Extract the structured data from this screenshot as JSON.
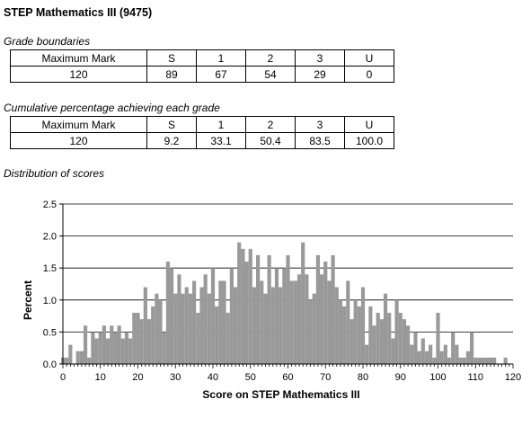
{
  "title": "STEP Mathematics III (9475)",
  "grade_boundaries": {
    "caption": "Grade boundaries",
    "headers": [
      "Maximum Mark",
      "S",
      "1",
      "2",
      "3",
      "U"
    ],
    "values": [
      "120",
      "89",
      "67",
      "54",
      "29",
      "0"
    ]
  },
  "cumulative": {
    "caption": "Cumulative percentage achieving each grade",
    "headers": [
      "Maximum Mark",
      "S",
      "1",
      "2",
      "3",
      "U"
    ],
    "values": [
      "120",
      "9.2",
      "33.1",
      "50.4",
      "83.5",
      "100.0"
    ]
  },
  "distribution_caption": "Distribution of scores",
  "chart_data": {
    "type": "bar",
    "title": "",
    "xlabel": "Score on STEP Mathematics III",
    "ylabel": "Percent",
    "xlim": [
      0,
      120
    ],
    "ylim": [
      0,
      2.5
    ],
    "x_ticks": [
      0,
      10,
      20,
      30,
      40,
      50,
      60,
      70,
      80,
      90,
      100,
      110,
      120
    ],
    "y_ticks": [
      0.0,
      0.5,
      1.0,
      1.5,
      2.0,
      2.5
    ],
    "y_tick_labels": [
      "0.0",
      "0.5",
      "1.0",
      "1.5",
      "2.0",
      "2.5"
    ],
    "grid": "horizontal",
    "bar_color": "#999999",
    "x": [
      0,
      1,
      2,
      3,
      4,
      5,
      6,
      7,
      8,
      9,
      10,
      11,
      12,
      13,
      14,
      15,
      16,
      17,
      18,
      19,
      20,
      21,
      22,
      23,
      24,
      25,
      26,
      27,
      28,
      29,
      30,
      31,
      32,
      33,
      34,
      35,
      36,
      37,
      38,
      39,
      40,
      41,
      42,
      43,
      44,
      45,
      46,
      47,
      48,
      49,
      50,
      51,
      52,
      53,
      54,
      55,
      56,
      57,
      58,
      59,
      60,
      61,
      62,
      63,
      64,
      65,
      66,
      67,
      68,
      69,
      70,
      71,
      72,
      73,
      74,
      75,
      76,
      77,
      78,
      79,
      80,
      81,
      82,
      83,
      84,
      85,
      86,
      87,
      88,
      89,
      90,
      91,
      92,
      93,
      94,
      95,
      96,
      97,
      98,
      99,
      100,
      101,
      102,
      103,
      104,
      105,
      106,
      107,
      108,
      109,
      110,
      111,
      112,
      113,
      114,
      115,
      116,
      117,
      118,
      119,
      120
    ],
    "values": [
      0.1,
      0.1,
      0.3,
      0.0,
      0.2,
      0.2,
      0.6,
      0.1,
      0.5,
      0.4,
      0.5,
      0.6,
      0.4,
      0.6,
      0.5,
      0.6,
      0.4,
      0.5,
      0.4,
      0.8,
      0.8,
      0.7,
      1.2,
      0.7,
      0.9,
      1.1,
      1.0,
      0.5,
      1.6,
      1.5,
      1.1,
      1.4,
      1.1,
      1.2,
      1.1,
      1.3,
      0.8,
      1.2,
      1.4,
      1.1,
      1.5,
      0.9,
      1.3,
      1.3,
      0.8,
      1.5,
      1.2,
      1.9,
      1.8,
      1.6,
      1.8,
      1.2,
      1.7,
      1.3,
      1.1,
      1.7,
      1.2,
      1.5,
      1.2,
      1.5,
      1.7,
      1.3,
      1.3,
      1.4,
      1.9,
      1.4,
      1.0,
      1.1,
      1.7,
      1.4,
      1.6,
      1.3,
      1.7,
      1.2,
      1.0,
      0.9,
      1.3,
      0.7,
      1.0,
      0.9,
      1.2,
      0.3,
      0.9,
      0.6,
      0.8,
      0.7,
      1.1,
      0.8,
      0.4,
      1.0,
      0.8,
      0.7,
      0.6,
      0.3,
      0.5,
      0.2,
      0.4,
      0.2,
      0.3,
      0.1,
      0.8,
      0.2,
      0.3,
      0.1,
      0.5,
      0.3,
      0.1,
      0.1,
      0.2,
      0.5,
      0.1,
      0.1,
      0.1,
      0.1,
      0.1,
      0.1,
      0.0,
      0.0,
      0.1,
      0.0,
      0.0
    ]
  }
}
